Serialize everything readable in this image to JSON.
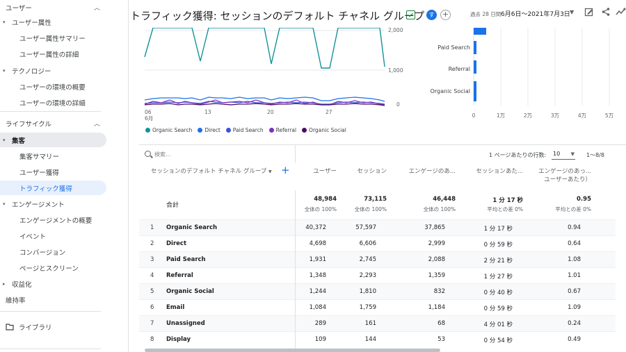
{
  "sidebar": {
    "items": [
      {
        "label": "ユーザー",
        "level": 0,
        "chevron": "up"
      },
      {
        "label": "ユーザー属性",
        "level": 1,
        "arrow": "down"
      },
      {
        "label": "ユーザー属性サマリー",
        "level": 2
      },
      {
        "label": "ユーザー属性の詳細",
        "level": 2
      },
      {
        "label": "テクノロジー",
        "level": 1,
        "arrow": "down"
      },
      {
        "label": "ユーザーの環境の概要",
        "level": 2
      },
      {
        "label": "ユーザーの環境の詳細",
        "level": 2
      },
      {
        "label": "ライフサイクル",
        "level": 0,
        "chevron": "up"
      },
      {
        "label": "集客",
        "level": 1,
        "arrow": "down",
        "state": "active"
      },
      {
        "label": "集客サマリー",
        "level": 2
      },
      {
        "label": "ユーザー獲得",
        "level": 2
      },
      {
        "label": "トラフィック獲得",
        "level": 2,
        "state": "selected"
      },
      {
        "label": "エンゲージメント",
        "level": 1,
        "arrow": "down"
      },
      {
        "label": "エンゲージメントの概要",
        "level": 2
      },
      {
        "label": "イベント",
        "level": 2
      },
      {
        "label": "コンバージョン",
        "level": 2
      },
      {
        "label": "ページとスクリーン",
        "level": 2
      },
      {
        "label": "収益化",
        "level": 1,
        "arrow": "right"
      },
      {
        "label": "維持率",
        "level": 1
      }
    ],
    "library_label": "ライブラリ"
  },
  "header": {
    "title": "トラフィック獲得: セッションのデフォルト チャネル グループ",
    "avatar_letter": "す",
    "add_label": "+",
    "date_prefix": "過去 28 日間",
    "date_range": "6月6日～2021年7月3日"
  },
  "line_chart": {
    "y_ticks": [
      "2,000",
      "1,000",
      "0"
    ],
    "x_ticks": [
      "06",
      "13",
      "20",
      "27"
    ],
    "x_month": "6月",
    "legend": [
      {
        "name": "Organic Search",
        "color": "#12939a"
      },
      {
        "name": "Direct",
        "color": "#1a73e8"
      },
      {
        "name": "Paid Search",
        "color": "#3f51d8"
      },
      {
        "name": "Referral",
        "color": "#7b2fbf"
      },
      {
        "name": "Organic Social",
        "color": "#4a0d67"
      }
    ]
  },
  "chart_data": {
    "type": "bar",
    "categories": [
      "Paid Search",
      "Referral",
      "Organic Social"
    ],
    "x_ticks": [
      "0",
      "1万",
      "2万",
      "3万",
      "4万",
      "5万"
    ],
    "xlim": [
      0,
      50000
    ]
  },
  "table": {
    "search_placeholder": "検索...",
    "rows_per_page_label": "1 ページあたりの行数:",
    "rows_per_page": "10",
    "pager": "1～8/8",
    "dimension_header": "セッションのデフォルト チャネル グループ",
    "columns": [
      "ユーザー",
      "セッション",
      "エンゲージのあ...",
      "セッションあた...",
      "エンゲージのあっ..."
    ],
    "column_5_sub": "ユーザーあたり）",
    "total_label": "合計",
    "totals": [
      "48,984",
      "73,115",
      "46,448",
      "1 分 17 秒",
      "0.95"
    ],
    "totals_sub": [
      "全体の 100%",
      "全体の 100%",
      "全体の 100%",
      "平均との差 0%",
      "平均との差 0%"
    ],
    "rows": [
      {
        "idx": "1",
        "name": "Organic Search",
        "v": [
          "40,372",
          "57,597",
          "37,865",
          "1 分 17 秒",
          "0.94"
        ]
      },
      {
        "idx": "2",
        "name": "Direct",
        "v": [
          "4,698",
          "6,606",
          "2,999",
          "0 分 59 秒",
          "0.64"
        ]
      },
      {
        "idx": "3",
        "name": "Paid Search",
        "v": [
          "1,931",
          "2,745",
          "2,088",
          "2 分 21 秒",
          "1.08"
        ]
      },
      {
        "idx": "4",
        "name": "Referral",
        "v": [
          "1,348",
          "2,293",
          "1,359",
          "1 分 27 秒",
          "1.01"
        ]
      },
      {
        "idx": "5",
        "name": "Organic Social",
        "v": [
          "1,244",
          "1,810",
          "832",
          "0 分 40 秒",
          "0.67"
        ]
      },
      {
        "idx": "6",
        "name": "Email",
        "v": [
          "1,084",
          "1,759",
          "1,184",
          "0 分 59 秒",
          "1.09"
        ]
      },
      {
        "idx": "7",
        "name": "Unassigned",
        "v": [
          "289",
          "161",
          "68",
          "4 分 01 秒",
          "0.24"
        ]
      },
      {
        "idx": "8",
        "name": "Display",
        "v": [
          "109",
          "144",
          "53",
          "0 分 54 秒",
          "0.49"
        ]
      }
    ]
  }
}
